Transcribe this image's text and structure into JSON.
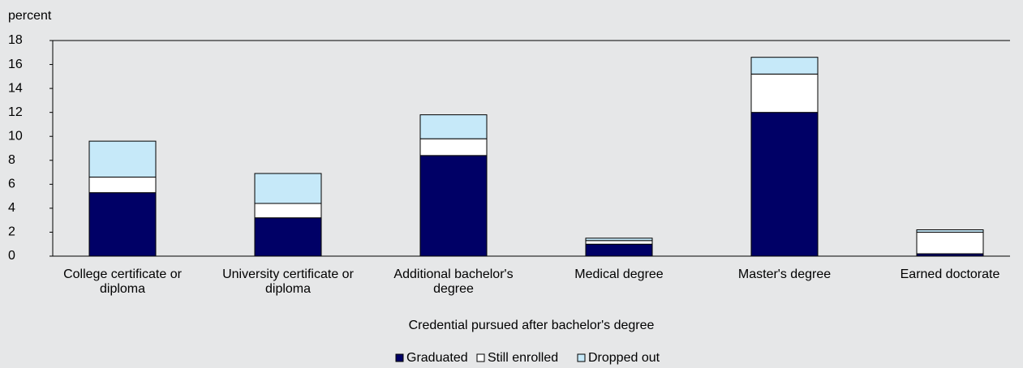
{
  "chart_data": {
    "type": "stacked_bar",
    "y_axis_label": "percent",
    "x_axis_label": "Credential pursued after bachelor's degree",
    "categories": [
      "College certificate or diploma",
      "University certificate or diploma",
      "Additional bachelor's degree",
      "Medical degree",
      "Master's degree",
      "Earned doctorate"
    ],
    "series": [
      {
        "name": "Graduated",
        "color": "#000066",
        "values": [
          5.3,
          3.2,
          8.4,
          1.0,
          12.0,
          0.2
        ]
      },
      {
        "name": "Still enrolled",
        "color": "#ffffff",
        "values": [
          1.3,
          1.2,
          1.4,
          0.3,
          3.2,
          1.8
        ]
      },
      {
        "name": "Dropped out",
        "color": "#c6e9f9",
        "values": [
          3.0,
          2.5,
          2.0,
          0.2,
          1.4,
          0.2
        ]
      }
    ],
    "ylim": [
      0,
      18
    ],
    "yticks": [
      0,
      2,
      4,
      6,
      8,
      10,
      12,
      14,
      16,
      18
    ],
    "legend": "bottom"
  }
}
